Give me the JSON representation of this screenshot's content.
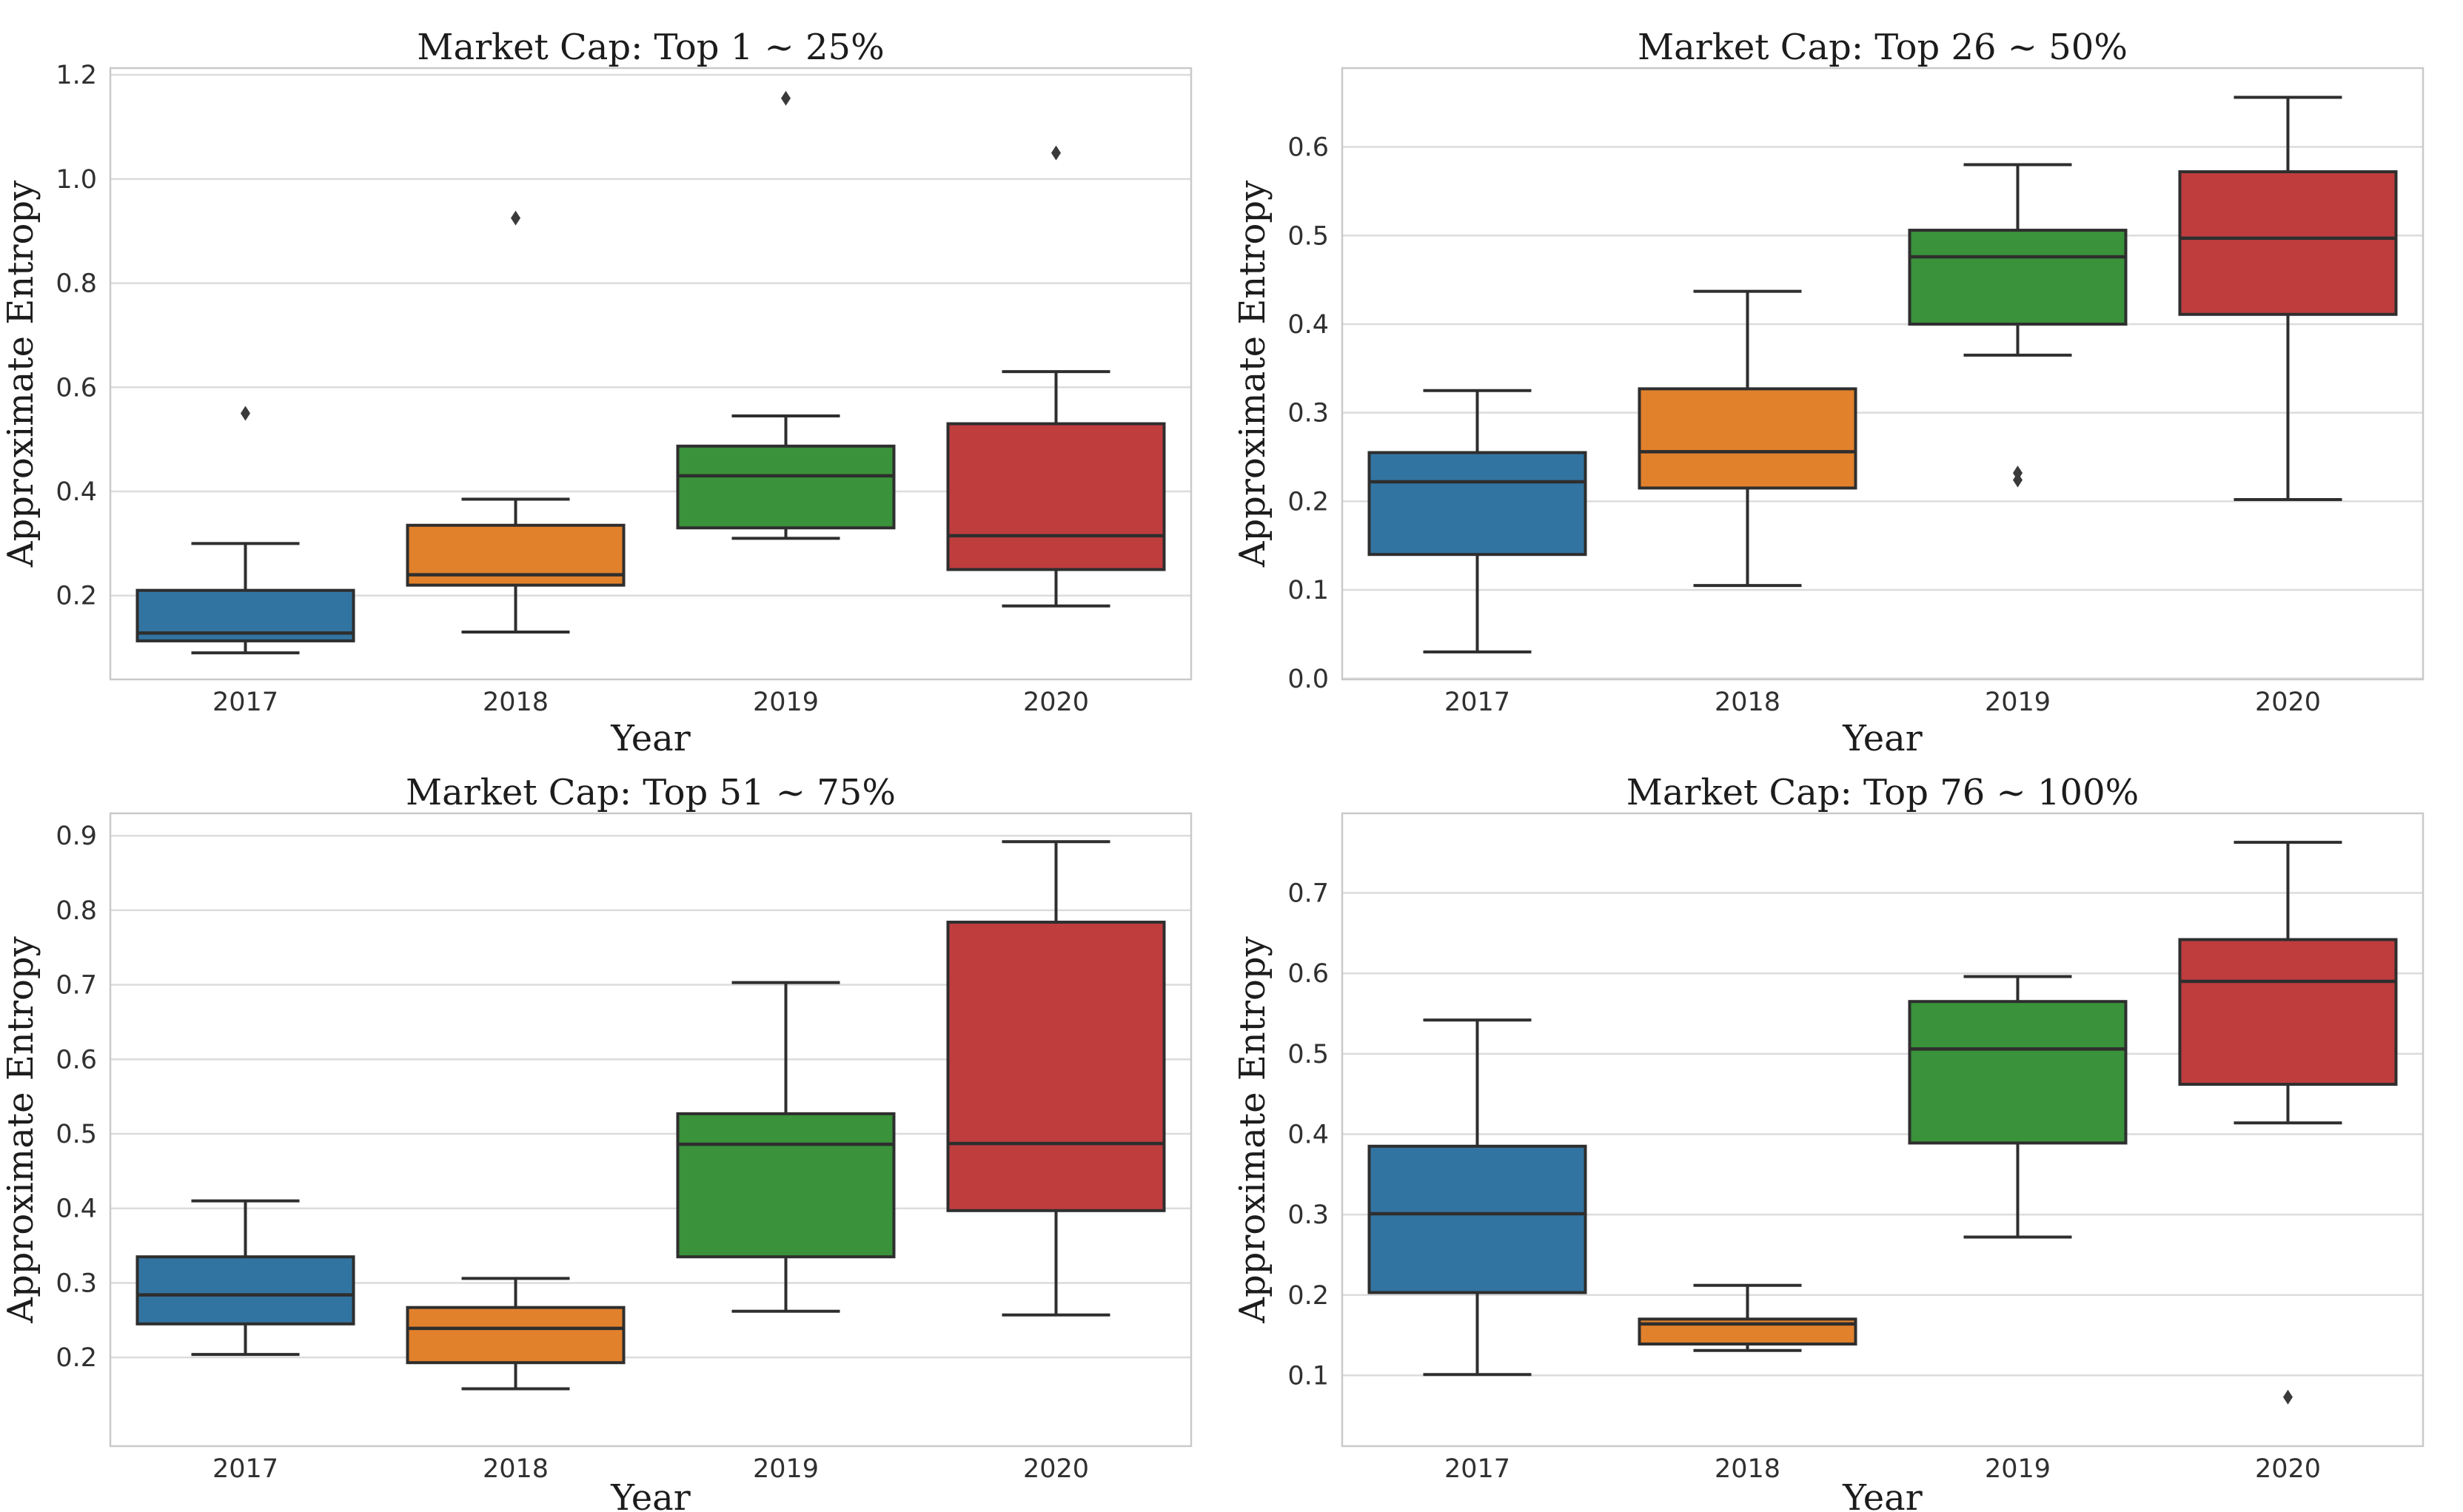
{
  "style": {
    "background": "#ffffff",
    "grid_color": "#dcdcdc",
    "spine_color": "#c9c9c9",
    "box_edge_color": "#2e2e2e",
    "outlier_color": "#3a3a3a",
    "tick_text_color": "#303030",
    "label_text_color": "#1c1c1c",
    "palette": {
      "2017": "#3274A1",
      "2018": "#E1812C",
      "2019": "#3A923A",
      "2020": "#C03D3E"
    }
  },
  "chart_data": [
    {
      "type": "box",
      "title": "Market Cap: Top 1 ~ 25%",
      "xlabel": "Year",
      "ylabel": "Approximate Entropy",
      "grid": "horizontal",
      "legend": "none",
      "categories": [
        "2017",
        "2018",
        "2019",
        "2020"
      ],
      "yticks": [
        0.2,
        0.4,
        0.6,
        0.8,
        1.0,
        1.2
      ],
      "ytick_labels": [
        "0.2",
        "0.4",
        "0.6",
        "0.8",
        "1.0",
        "1.2"
      ],
      "ylim": [
        0.039,
        1.213
      ],
      "series": [
        {
          "category": "2017",
          "color": "#3274A1",
          "whislo": 0.09,
          "q1": 0.113,
          "med": 0.128,
          "q3": 0.21,
          "whishi": 0.3,
          "outliers": [
            0.55
          ]
        },
        {
          "category": "2018",
          "color": "#E1812C",
          "whislo": 0.13,
          "q1": 0.22,
          "med": 0.24,
          "q3": 0.335,
          "whishi": 0.385,
          "outliers": [
            0.925
          ]
        },
        {
          "category": "2019",
          "color": "#3A923A",
          "whislo": 0.31,
          "q1": 0.33,
          "med": 0.43,
          "q3": 0.487,
          "whishi": 0.545,
          "outliers": [
            1.155
          ]
        },
        {
          "category": "2020",
          "color": "#C03D3E",
          "whislo": 0.18,
          "q1": 0.25,
          "med": 0.315,
          "q3": 0.53,
          "whishi": 0.63,
          "outliers": [
            1.05
          ]
        }
      ]
    },
    {
      "type": "box",
      "title": "Market Cap: Top 26 ~ 50%",
      "xlabel": "Year",
      "ylabel": "Approximate Entropy",
      "grid": "horizontal",
      "legend": "none",
      "categories": [
        "2017",
        "2018",
        "2019",
        "2020"
      ],
      "yticks": [
        0.0,
        0.1,
        0.2,
        0.3,
        0.4,
        0.5,
        0.6
      ],
      "ytick_labels": [
        "0.0",
        "0.1",
        "0.2",
        "0.3",
        "0.4",
        "0.5",
        "0.6"
      ],
      "ylim": [
        -0.001,
        0.689
      ],
      "series": [
        {
          "category": "2017",
          "color": "#3274A1",
          "whislo": 0.03,
          "q1": 0.14,
          "med": 0.222,
          "q3": 0.255,
          "whishi": 0.325,
          "outliers": []
        },
        {
          "category": "2018",
          "color": "#E1812C",
          "whislo": 0.105,
          "q1": 0.215,
          "med": 0.256,
          "q3": 0.327,
          "whishi": 0.437,
          "outliers": []
        },
        {
          "category": "2019",
          "color": "#3A923A",
          "whislo": 0.365,
          "q1": 0.4,
          "med": 0.476,
          "q3": 0.506,
          "whishi": 0.58,
          "outliers": [
            0.232,
            0.224
          ]
        },
        {
          "category": "2020",
          "color": "#C03D3E",
          "whislo": 0.202,
          "q1": 0.411,
          "med": 0.497,
          "q3": 0.572,
          "whishi": 0.656,
          "outliers": []
        }
      ]
    },
    {
      "type": "box",
      "title": "Market Cap: Top 51 ~ 75%",
      "xlabel": "Year",
      "ylabel": "Approximate Entropy",
      "grid": "horizontal",
      "legend": "none",
      "categories": [
        "2017",
        "2018",
        "2019",
        "2020"
      ],
      "yticks": [
        0.2,
        0.3,
        0.4,
        0.5,
        0.6,
        0.7,
        0.8,
        0.9
      ],
      "ytick_labels": [
        "0.2",
        "0.3",
        "0.4",
        "0.5",
        "0.6",
        "0.7",
        "0.8",
        "0.9"
      ],
      "ylim": [
        0.081,
        0.93
      ],
      "series": [
        {
          "category": "2017",
          "color": "#3274A1",
          "whislo": 0.204,
          "q1": 0.245,
          "med": 0.284,
          "q3": 0.335,
          "whishi": 0.41,
          "outliers": []
        },
        {
          "category": "2018",
          "color": "#E1812C",
          "whislo": 0.158,
          "q1": 0.193,
          "med": 0.239,
          "q3": 0.267,
          "whishi": 0.306,
          "outliers": []
        },
        {
          "category": "2019",
          "color": "#3A923A",
          "whislo": 0.262,
          "q1": 0.335,
          "med": 0.486,
          "q3": 0.527,
          "whishi": 0.703,
          "outliers": []
        },
        {
          "category": "2020",
          "color": "#C03D3E",
          "whislo": 0.257,
          "q1": 0.397,
          "med": 0.487,
          "q3": 0.784,
          "whishi": 0.892,
          "outliers": []
        }
      ]
    },
    {
      "type": "box",
      "title": "Market Cap: Top 76 ~ 100%",
      "xlabel": "Year",
      "ylabel": "Approximate Entropy",
      "grid": "horizontal",
      "legend": "none",
      "categories": [
        "2017",
        "2018",
        "2019",
        "2020"
      ],
      "yticks": [
        0.1,
        0.2,
        0.3,
        0.4,
        0.5,
        0.6,
        0.7
      ],
      "ytick_labels": [
        "0.1",
        "0.2",
        "0.3",
        "0.4",
        "0.5",
        "0.6",
        "0.7"
      ],
      "ylim": [
        0.012,
        0.799
      ],
      "series": [
        {
          "category": "2017",
          "color": "#3274A1",
          "whislo": 0.101,
          "q1": 0.203,
          "med": 0.301,
          "q3": 0.385,
          "whishi": 0.542,
          "outliers": []
        },
        {
          "category": "2018",
          "color": "#E1812C",
          "whislo": 0.131,
          "q1": 0.139,
          "med": 0.164,
          "q3": 0.17,
          "whishi": 0.212,
          "outliers": []
        },
        {
          "category": "2019",
          "color": "#3A923A",
          "whislo": 0.272,
          "q1": 0.389,
          "med": 0.506,
          "q3": 0.565,
          "whishi": 0.596,
          "outliers": []
        },
        {
          "category": "2020",
          "color": "#C03D3E",
          "whislo": 0.414,
          "q1": 0.462,
          "med": 0.59,
          "q3": 0.642,
          "whishi": 0.763,
          "outliers": [
            0.073
          ]
        }
      ]
    }
  ]
}
